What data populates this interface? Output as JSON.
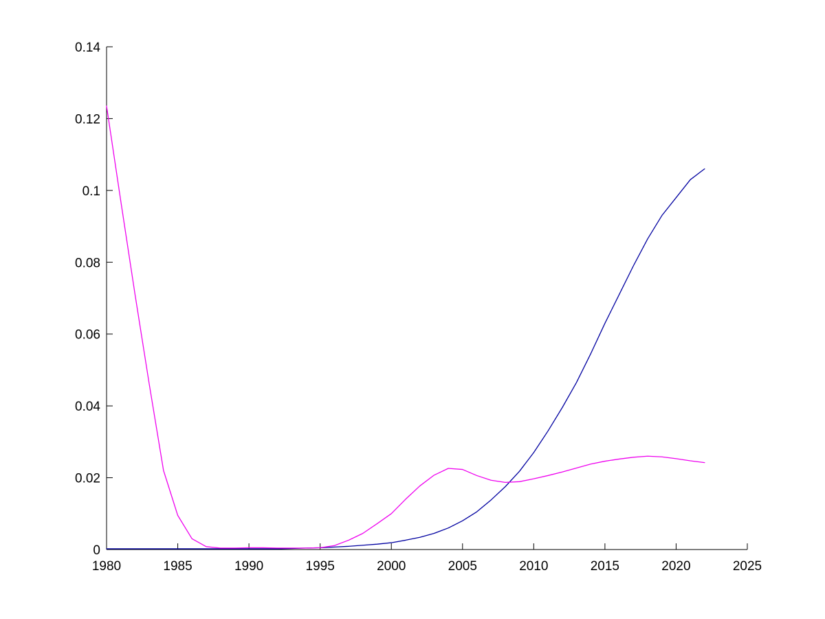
{
  "figure": {
    "background": "#ffffff"
  },
  "chart_data": {
    "type": "line",
    "grid": false,
    "legend": false,
    "axis_color": "#000000",
    "tick_label_color": "#000000",
    "xlim": [
      1980,
      2025
    ],
    "ylim": [
      0,
      0.14
    ],
    "xtick_values": [
      1980,
      1985,
      1990,
      1995,
      2000,
      2005,
      2010,
      2015,
      2020,
      2025
    ],
    "xtick_labels": [
      "1980",
      "1985",
      "1990",
      "1995",
      "2000",
      "2005",
      "2010",
      "2015",
      "2020",
      "2025"
    ],
    "ytick_values": [
      0,
      0.02,
      0.04,
      0.06,
      0.08,
      0.1,
      0.12,
      0.14
    ],
    "ytick_labels": [
      "0",
      "0.02",
      "0.04",
      "0.06",
      "0.08",
      "0.1",
      "0.12",
      "0.14"
    ],
    "x": [
      1980,
      1981,
      1982,
      1983,
      1984,
      1985,
      1986,
      1987,
      1988,
      1989,
      1990,
      1991,
      1992,
      1993,
      1994,
      1995,
      1996,
      1997,
      1998,
      1999,
      2000,
      2001,
      2002,
      2003,
      2004,
      2005,
      2006,
      2007,
      2008,
      2009,
      2010,
      2011,
      2012,
      2013,
      2014,
      2015,
      2016,
      2017,
      2018,
      2019,
      2020,
      2021,
      2022
    ],
    "series": [
      {
        "name": "blue-line",
        "color": "#0000a0",
        "values": [
          0.0002,
          0.0002,
          0.0002,
          0.0002,
          0.0002,
          0.0002,
          0.0002,
          0.0002,
          0.0002,
          0.0002,
          0.0002,
          0.0002,
          0.0002,
          0.0003,
          0.0004,
          0.0005,
          0.0007,
          0.0009,
          0.0012,
          0.0015,
          0.0019,
          0.0026,
          0.0034,
          0.0045,
          0.006,
          0.008,
          0.0105,
          0.0138,
          0.0175,
          0.0218,
          0.027,
          0.033,
          0.0395,
          0.0465,
          0.0545,
          0.063,
          0.071,
          0.079,
          0.0865,
          0.093,
          0.098,
          0.103,
          0.106
        ]
      },
      {
        "name": "magenta-line",
        "color": "#ee00ee",
        "values": [
          0.1235,
          0.097,
          0.071,
          0.046,
          0.022,
          0.0095,
          0.003,
          0.0008,
          0.0004,
          0.0004,
          0.0005,
          0.0005,
          0.0004,
          0.0004,
          0.0004,
          0.0005,
          0.0011,
          0.0026,
          0.0045,
          0.0072,
          0.01,
          0.014,
          0.0177,
          0.0207,
          0.0226,
          0.0223,
          0.0206,
          0.0193,
          0.0187,
          0.0189,
          0.0197,
          0.0206,
          0.0216,
          0.0227,
          0.0238,
          0.0246,
          0.0252,
          0.0257,
          0.026,
          0.0258,
          0.0253,
          0.0247,
          0.0242
        ]
      }
    ]
  }
}
